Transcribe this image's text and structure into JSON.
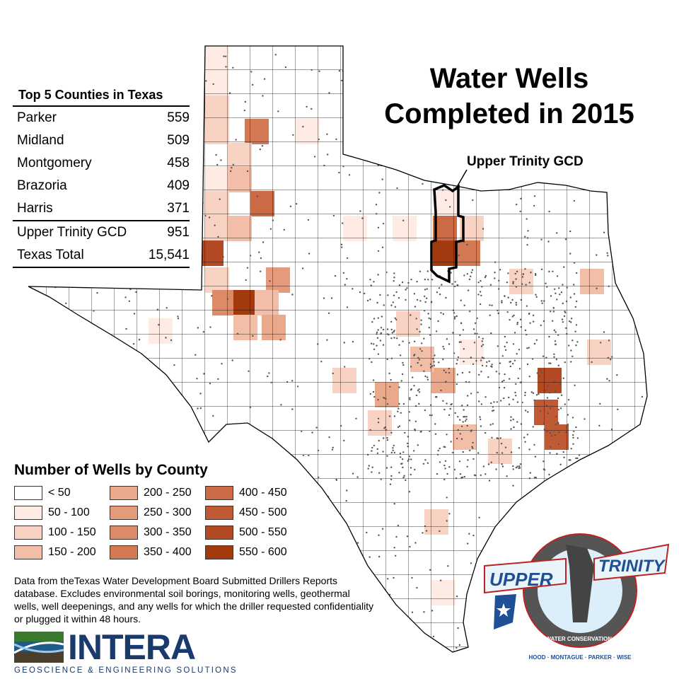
{
  "title_line1": "Water Wells",
  "title_line2": "Completed in 2015",
  "gcd_label": "Upper Trinity GCD",
  "top5": {
    "heading": "Top 5 Counties in Texas",
    "rows": [
      {
        "name": "Parker",
        "value": "559"
      },
      {
        "name": "Midland",
        "value": "509"
      },
      {
        "name": "Montgomery",
        "value": "458"
      },
      {
        "name": "Brazoria",
        "value": "409"
      },
      {
        "name": "Harris",
        "value": "371"
      }
    ],
    "gcd": {
      "name": "Upper Trinity GCD",
      "value": "951"
    },
    "total": {
      "name": "Texas Total",
      "value": "15,541"
    }
  },
  "legend": {
    "heading": "Number of Wells by County",
    "classes": [
      {
        "label": "< 50",
        "color": "#ffffff"
      },
      {
        "label": "50 - 100",
        "color": "#fdebe4"
      },
      {
        "label": "100 - 150",
        "color": "#f8d3c3"
      },
      {
        "label": "150 - 200",
        "color": "#f2bea7"
      },
      {
        "label": "200 - 250",
        "color": "#eba98c"
      },
      {
        "label": "250 - 300",
        "color": "#e49a7b"
      },
      {
        "label": "300 - 350",
        "color": "#dc8a68"
      },
      {
        "label": "350 - 400",
        "color": "#d37a55"
      },
      {
        "label": "400 - 450",
        "color": "#cb6a44"
      },
      {
        "label": "450 - 500",
        "color": "#c05a34"
      },
      {
        "label": "500 - 550",
        "color": "#b34a24"
      },
      {
        "label": "550 - 600",
        "color": "#a33a0e"
      }
    ]
  },
  "note": "Data from theTexas Water Development Board Submitted Drillers Reports database. Excludes environmental soil borings, monitoring wells, geothermal wells, well deepenings, and any wells for which the driller requested confidentiality or plugged it within 48 hours.",
  "intera": {
    "name": "INTERA",
    "tagline": "GEOSCIENCE & ENGINEERING SOLUTIONS"
  },
  "ut_logo": {
    "upper": "UPPER",
    "trinity": "TRINITY",
    "ring": "GROUNDWATER CONSERVATION DISTRICT",
    "counties": "HOOD · MONTAGUE · PARKER · WISE"
  },
  "colors": {
    "well_dot": "#555555",
    "county_line": "#000000",
    "gcd_outline": "#000000"
  }
}
